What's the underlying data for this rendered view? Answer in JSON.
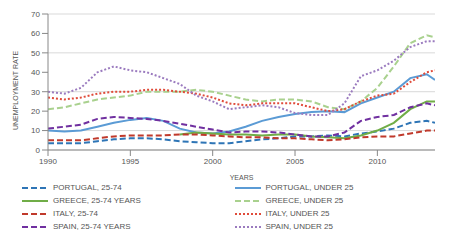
{
  "chart_data": {
    "type": "line",
    "x_label": "YEARS",
    "y_label": "UNEMPLOYMENT RATE",
    "x": [
      1990,
      1991,
      1992,
      1993,
      1994,
      1995,
      1996,
      1997,
      1998,
      1999,
      2000,
      2001,
      2002,
      2003,
      2004,
      2005,
      2006,
      2007,
      2008,
      2009,
      2010,
      2011,
      2012,
      2013,
      2013.5
    ],
    "xlim": [
      1990,
      2013.5
    ],
    "xticks": [
      1990,
      1995,
      2000,
      2005,
      2010
    ],
    "ylim": [
      0,
      70
    ],
    "yticks": [
      0,
      10,
      20,
      30,
      40,
      50,
      60,
      70
    ],
    "grid": true,
    "legend": "bottom",
    "series": [
      {
        "name": "PORTUGAL, 25-74",
        "color": "#2e75b6",
        "line_style": "dashed",
        "values": [
          3.5,
          3.5,
          3.5,
          4.5,
          5.5,
          6,
          6,
          5.5,
          4.5,
          4,
          3.5,
          3.5,
          4.5,
          5.5,
          6,
          7,
          7,
          7.5,
          7,
          8.5,
          9.5,
          11,
          14,
          15,
          14
        ]
      },
      {
        "name": "PORTUGAL, UNDER 25",
        "color": "#5b9bd5",
        "line_style": "solid",
        "values": [
          10,
          9.5,
          10,
          12,
          14,
          15.5,
          16.5,
          15,
          11,
          9,
          8.5,
          9.5,
          12,
          15,
          17,
          18.5,
          19.5,
          20,
          19.5,
          24,
          27,
          30,
          37,
          39,
          36
        ]
      },
      {
        "name": "GREECE, 25-74 YEARS",
        "color": "#70ad47",
        "line_style": "solid",
        "values": [
          null,
          null,
          null,
          null,
          null,
          null,
          null,
          null,
          8,
          9,
          8.5,
          8,
          8,
          7.5,
          8,
          8,
          7,
          6.5,
          6,
          7.5,
          10,
          14,
          21,
          25,
          25
        ]
      },
      {
        "name": "GREECE, UNDER 25",
        "color": "#a9d18e",
        "line_style": "dashed",
        "values": [
          21,
          22,
          24,
          26,
          27,
          28,
          30,
          30,
          30,
          31,
          30,
          28,
          26,
          25,
          26,
          26,
          25,
          22,
          21,
          25,
          32,
          43,
          55,
          59,
          58
        ]
      },
      {
        "name": "ITALY, 25-74",
        "color": "#c0392b",
        "line_style": "dashed",
        "values": [
          5,
          5,
          5,
          6,
          7,
          7.5,
          7.5,
          7.5,
          8,
          8,
          7.5,
          7,
          6.5,
          6.5,
          6,
          6,
          5.5,
          5,
          5.5,
          6.5,
          7,
          7,
          8.5,
          10,
          10
        ]
      },
      {
        "name": "ITALY, UNDER 25",
        "color": "#e04b3a",
        "line_style": "dotted",
        "values": [
          27,
          26,
          27,
          29,
          30,
          30,
          31,
          31,
          30,
          29,
          27,
          24,
          23,
          24,
          24,
          24,
          22,
          20,
          21,
          25,
          28,
          29,
          35,
          40,
          41
        ]
      },
      {
        "name": "SPAIN, 25-74 YEARS",
        "color": "#7030a0",
        "line_style": "dashed",
        "values": [
          11,
          12,
          13,
          16,
          17,
          16.5,
          16,
          15,
          13.5,
          12,
          10.5,
          9,
          9.5,
          9.5,
          9,
          8,
          7,
          7,
          9,
          15,
          17,
          18,
          22,
          24,
          23
        ]
      },
      {
        "name": "SPAIN, UNDER 25",
        "color": "#9b7bbf",
        "line_style": "dotted",
        "values": [
          30,
          29,
          32,
          40,
          43,
          41,
          40,
          37,
          34,
          28,
          25,
          21,
          22,
          23,
          22,
          19,
          18,
          18,
          24,
          38,
          41,
          46,
          53,
          56,
          56
        ]
      }
    ]
  }
}
